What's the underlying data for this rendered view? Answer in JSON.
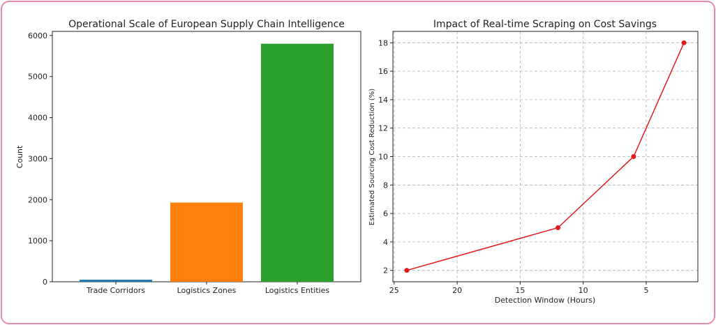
{
  "chart_data": [
    {
      "type": "bar",
      "title": "Operational Scale of European Supply Chain Intelligence",
      "xlabel": "",
      "ylabel": "Count",
      "categories": [
        "Trade Corridors",
        "Logistics Zones",
        "Logistics Entities"
      ],
      "values": [
        50,
        1930,
        5800
      ],
      "colors": [
        "#1f77b4",
        "#ff7f0e",
        "#2ca02c"
      ],
      "ylim": [
        0,
        6100
      ],
      "yticks": [
        0,
        1000,
        2000,
        3000,
        4000,
        5000,
        6000
      ],
      "grid": false
    },
    {
      "type": "line",
      "title": "Impact of Real-time Scraping on Cost Savings",
      "xlabel": "Detection Window (Hours)",
      "ylabel": "Estimated Sourcing Cost Reduction (%)",
      "x": [
        24,
        12,
        6,
        2
      ],
      "y": [
        2,
        5,
        10,
        18
      ],
      "color": "#e31a1c",
      "xlim": [
        25.1,
        0.9
      ],
      "xaxis_reversed": true,
      "ylim": [
        1.2,
        18.8
      ],
      "xticks": [
        25,
        20,
        15,
        10,
        5
      ],
      "yticks": [
        2,
        4,
        6,
        8,
        10,
        12,
        14,
        16,
        18
      ],
      "grid": true
    }
  ]
}
